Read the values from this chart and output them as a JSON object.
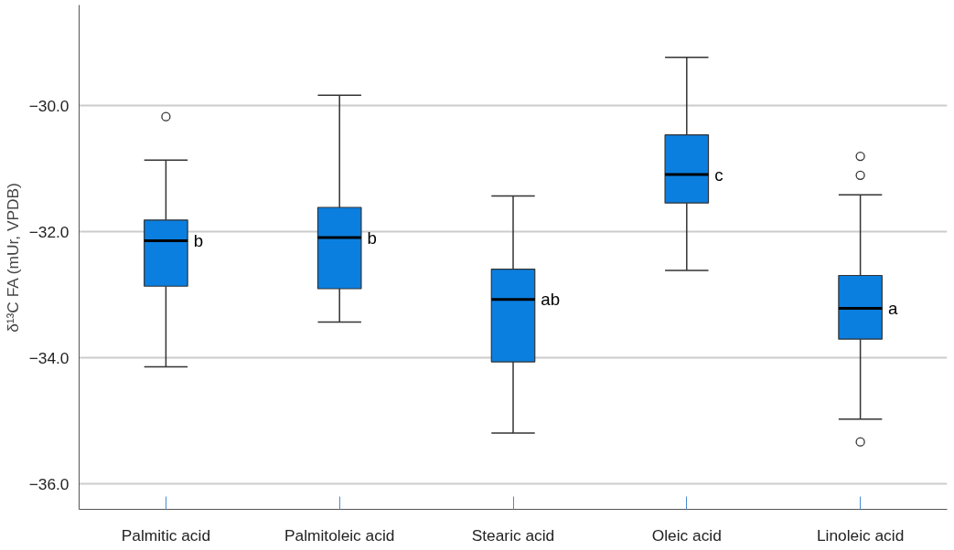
{
  "chart_data": {
    "type": "box",
    "ylabel": "δ¹³C FA (mUr, VPDB)",
    "categories": [
      "Palmitic acid",
      "Palmitoleic acid",
      "Stearic acid",
      "Oleic acid",
      "Linoleic acid"
    ],
    "color": "#0b7fe0",
    "boxes": [
      {
        "low": -34.14,
        "q1": -32.86,
        "median": -32.14,
        "q3": -31.81,
        "high": -30.86,
        "outliers": [
          -30.17
        ]
      },
      {
        "low": -33.43,
        "q1": -32.9,
        "median": -32.09,
        "q3": -31.61,
        "high": -29.83
      },
      {
        "low": -35.19,
        "q1": -34.06,
        "median": -33.07,
        "q3": -32.59,
        "high": -31.43
      },
      {
        "low": -32.61,
        "q1": -31.54,
        "median": -31.09,
        "q3": -30.46,
        "high": -29.23
      },
      {
        "low": -34.97,
        "q1": -33.7,
        "median": -33.21,
        "q3": -32.69,
        "high": -31.41,
        "outliers": [
          -30.8,
          -31.1,
          -35.33
        ]
      }
    ],
    "ylim": [
      -36.4,
      -28.4
    ],
    "yticks": [
      {
        "value": -36,
        "label": "−36.0"
      },
      {
        "value": -34,
        "label": "−34.0"
      },
      {
        "value": -32,
        "label": "−32.0"
      },
      {
        "value": -30,
        "label": "−30.0"
      }
    ],
    "grid": "y",
    "annotations": [
      {
        "text": "b",
        "x": "Palmitic acid",
        "y": -32.14
      },
      {
        "text": "b",
        "x": "Palmitoleic acid",
        "y": -32.09
      },
      {
        "text": "ab",
        "x": "Stearic acid",
        "y": -33.07
      },
      {
        "text": "c",
        "x": "Oleic acid",
        "y": -31.09
      },
      {
        "text": "a",
        "x": "Linoleic acid",
        "y": -33.21
      }
    ]
  }
}
